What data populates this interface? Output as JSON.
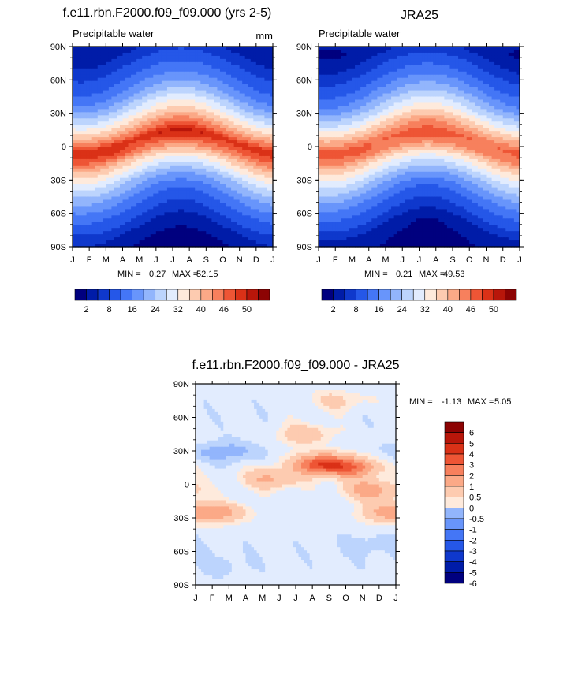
{
  "chart_data": [
    {
      "type": "heatmap",
      "title": "f.e11.rbn.F2000.f09_f09.000 (yrs 2-5)",
      "subtitle": "Precipitable water",
      "units": "mm",
      "x_tick_labels": [
        "J",
        "F",
        "M",
        "A",
        "M",
        "J",
        "J",
        "A",
        "S",
        "O",
        "N",
        "D",
        "J"
      ],
      "y_tick_labels": [
        "90N",
        "60N",
        "30N",
        "0",
        "30S",
        "60S",
        "90S"
      ],
      "y_range": [
        -90,
        90
      ],
      "min_label": "MIN =",
      "min_value": "0.27",
      "max_label": "MAX =",
      "max_value": "52.15",
      "colorbar_labels": [
        "2",
        "8",
        "16",
        "24",
        "32",
        "40",
        "46",
        "50"
      ],
      "latitude_profile": {
        "lat": [
          90,
          75,
          60,
          45,
          30,
          15,
          5,
          0,
          -5,
          -15,
          -30,
          -45,
          -60,
          -75,
          -90
        ],
        "value": [
          4,
          8,
          13,
          20,
          30,
          42,
          49,
          47,
          45,
          36,
          24,
          16,
          10,
          5,
          2
        ]
      },
      "seasonal_shift_deg": 10,
      "summer_boost": 7
    },
    {
      "type": "heatmap",
      "title": "JRA25",
      "subtitle": "Precipitable water",
      "x_tick_labels": [
        "J",
        "F",
        "M",
        "A",
        "M",
        "J",
        "J",
        "A",
        "S",
        "O",
        "N",
        "D",
        "J"
      ],
      "y_tick_labels": [
        "90N",
        "60N",
        "30N",
        "0",
        "30S",
        "60S",
        "90S"
      ],
      "y_range": [
        -90,
        90
      ],
      "min_label": "MIN =",
      "min_value": "0.21",
      "max_label": "MAX =",
      "max_value": "49.53",
      "colorbar_labels": [
        "2",
        "8",
        "16",
        "24",
        "32",
        "40",
        "46",
        "50"
      ],
      "latitude_profile": {
        "lat": [
          90,
          75,
          60,
          45,
          30,
          15,
          5,
          0,
          -5,
          -15,
          -30,
          -45,
          -60,
          -75,
          -90
        ],
        "value": [
          3,
          7,
          12,
          19,
          28,
          40,
          46,
          45,
          43,
          34,
          23,
          15,
          9,
          4,
          2
        ]
      },
      "seasonal_shift_deg": 10,
      "summer_boost": 7
    },
    {
      "type": "heatmap",
      "title": "f.e11.rbn.F2000.f09_f09.000 - JRA25",
      "x_tick_labels": [
        "J",
        "F",
        "M",
        "A",
        "M",
        "J",
        "J",
        "A",
        "S",
        "O",
        "N",
        "D",
        "J"
      ],
      "y_tick_labels": [
        "90N",
        "60N",
        "30N",
        "0",
        "30S",
        "60S",
        "90S"
      ],
      "y_range": [
        -90,
        90
      ],
      "min_label": "MIN =",
      "min_value": "-1.13",
      "max_label": "MAX =",
      "max_value": "5.05",
      "colorbar_labels": [
        "6",
        "5",
        "4",
        "3",
        "2",
        "1",
        "0.5",
        "0",
        "-0.5",
        "-1",
        "-2",
        "-3",
        "-4",
        "-5",
        "-6"
      ],
      "difference_features": [
        {
          "month": 7.5,
          "lat": 18,
          "value": 4.5
        },
        {
          "month": 9.5,
          "lat": 15,
          "value": 3
        },
        {
          "month": 4.5,
          "lat": 5,
          "value": 2
        },
        {
          "month": 10.5,
          "lat": -5,
          "value": 2.5
        },
        {
          "month": 1.5,
          "lat": -25,
          "value": 2
        },
        {
          "month": 11.5,
          "lat": -25,
          "value": 2
        },
        {
          "month": 6.5,
          "lat": 45,
          "value": 1.5
        },
        {
          "month": 8.5,
          "lat": 75,
          "value": 1
        },
        {
          "month": 2.5,
          "lat": 30,
          "value": -0.8
        },
        {
          "month": 12.5,
          "lat": 28,
          "value": -0.6
        },
        {
          "month": 10.5,
          "lat": -55,
          "value": -0.6
        },
        {
          "month": 1.5,
          "lat": -72,
          "value": -0.5
        }
      ]
    }
  ],
  "colors": {
    "panel_scale": [
      "#00007f",
      "#001ca8",
      "#0f38cc",
      "#2557e8",
      "#4476f6",
      "#6895fb",
      "#92b5fc",
      "#bcd4fd",
      "#e2ecfe",
      "#feeadc",
      "#fdcbb0",
      "#fba987",
      "#f7805d",
      "#ee5535",
      "#da3117",
      "#b8160a",
      "#8c0303"
    ],
    "diff_scale": [
      "#00007f",
      "#001ca8",
      "#0f38cc",
      "#2557e8",
      "#4476f6",
      "#6895fb",
      "#92b5fc",
      "#bcd4fd",
      "#e2ecfe",
      "#feeadc",
      "#fdcbb0",
      "#fba987",
      "#f7805d",
      "#ee5535",
      "#da3117",
      "#b8160a",
      "#8c0303"
    ]
  }
}
